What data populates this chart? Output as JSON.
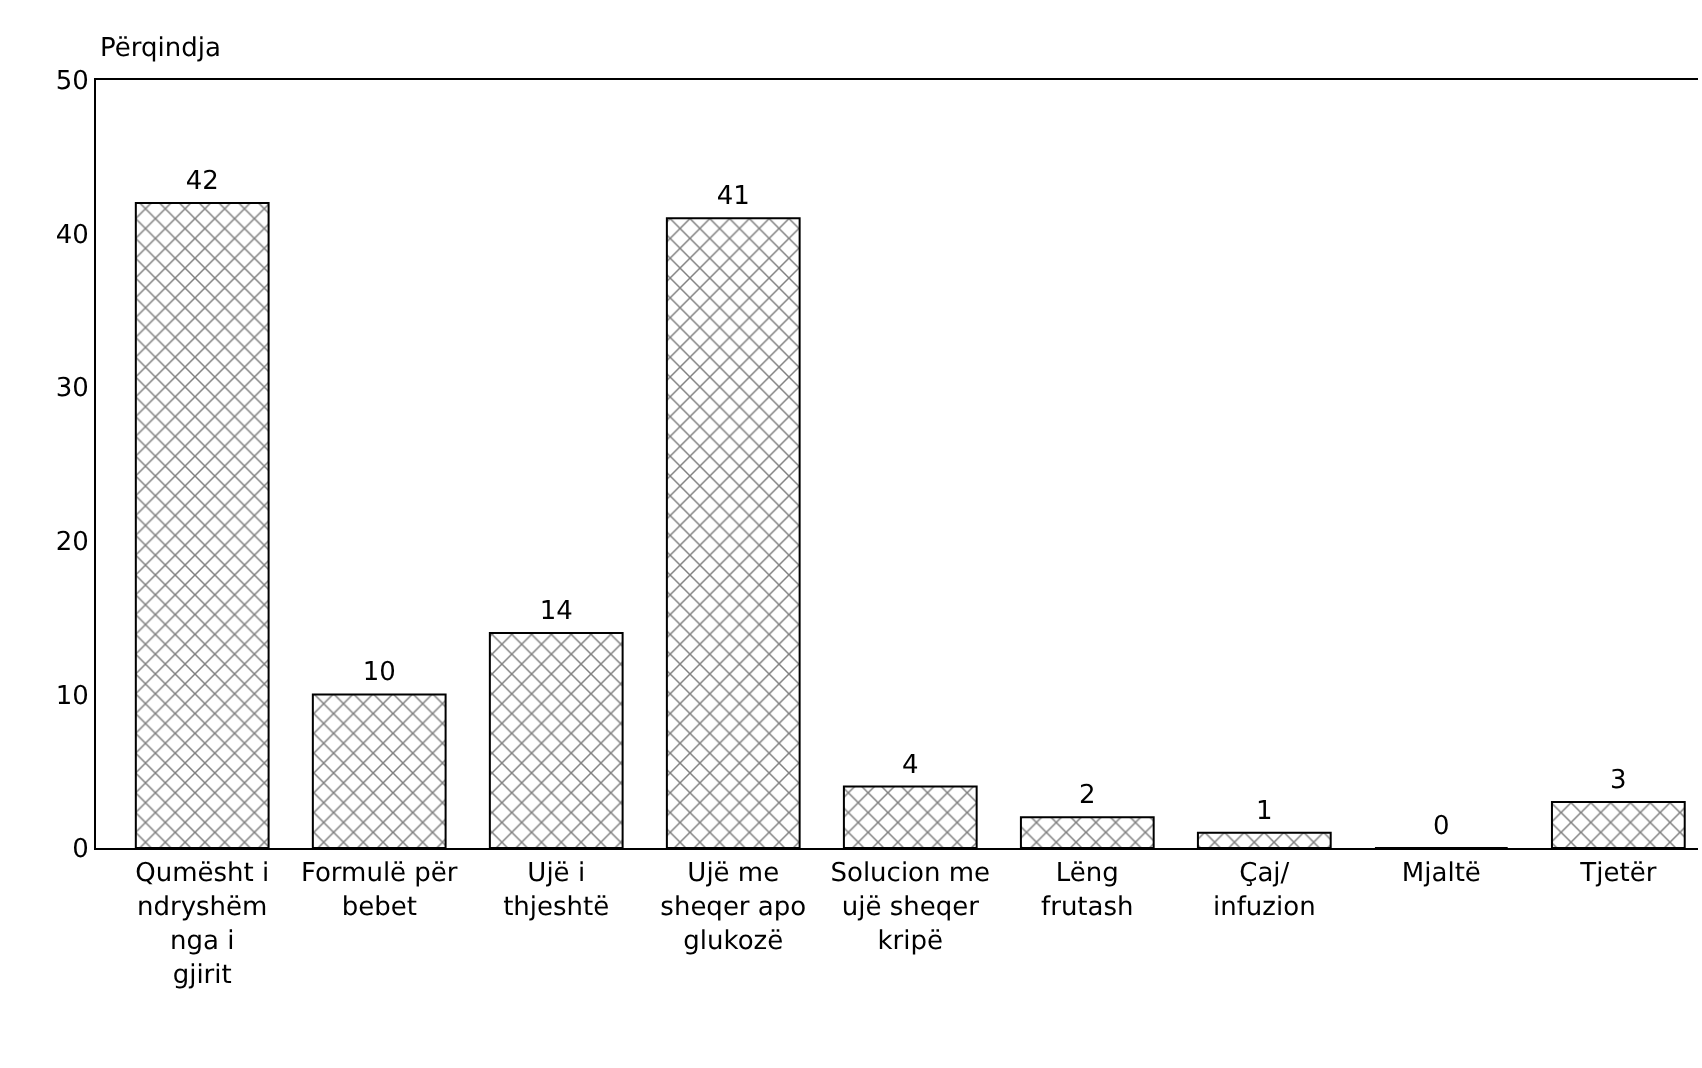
{
  "chart_data": {
    "type": "bar",
    "ylabel": "Përqindja",
    "categories": [
      "Qumësht i ndryshëm nga i gjirit",
      "Formulë për bebet",
      "Ujë i thjeshtë",
      "Ujë me sheqer apo glukozë",
      "Solucion me ujë sheqer kripë",
      "Lëng frutash",
      "Çaj/ infuzion",
      "Mjaltë",
      "Tjetër"
    ],
    "values": [
      42,
      10,
      14,
      41,
      4,
      2,
      1,
      0,
      3
    ],
    "color": "#000000",
    "ylim": [
      0,
      50
    ],
    "yticks": [
      0,
      10,
      20,
      30,
      40,
      50
    ],
    "grid": false,
    "data_labels": true
  }
}
